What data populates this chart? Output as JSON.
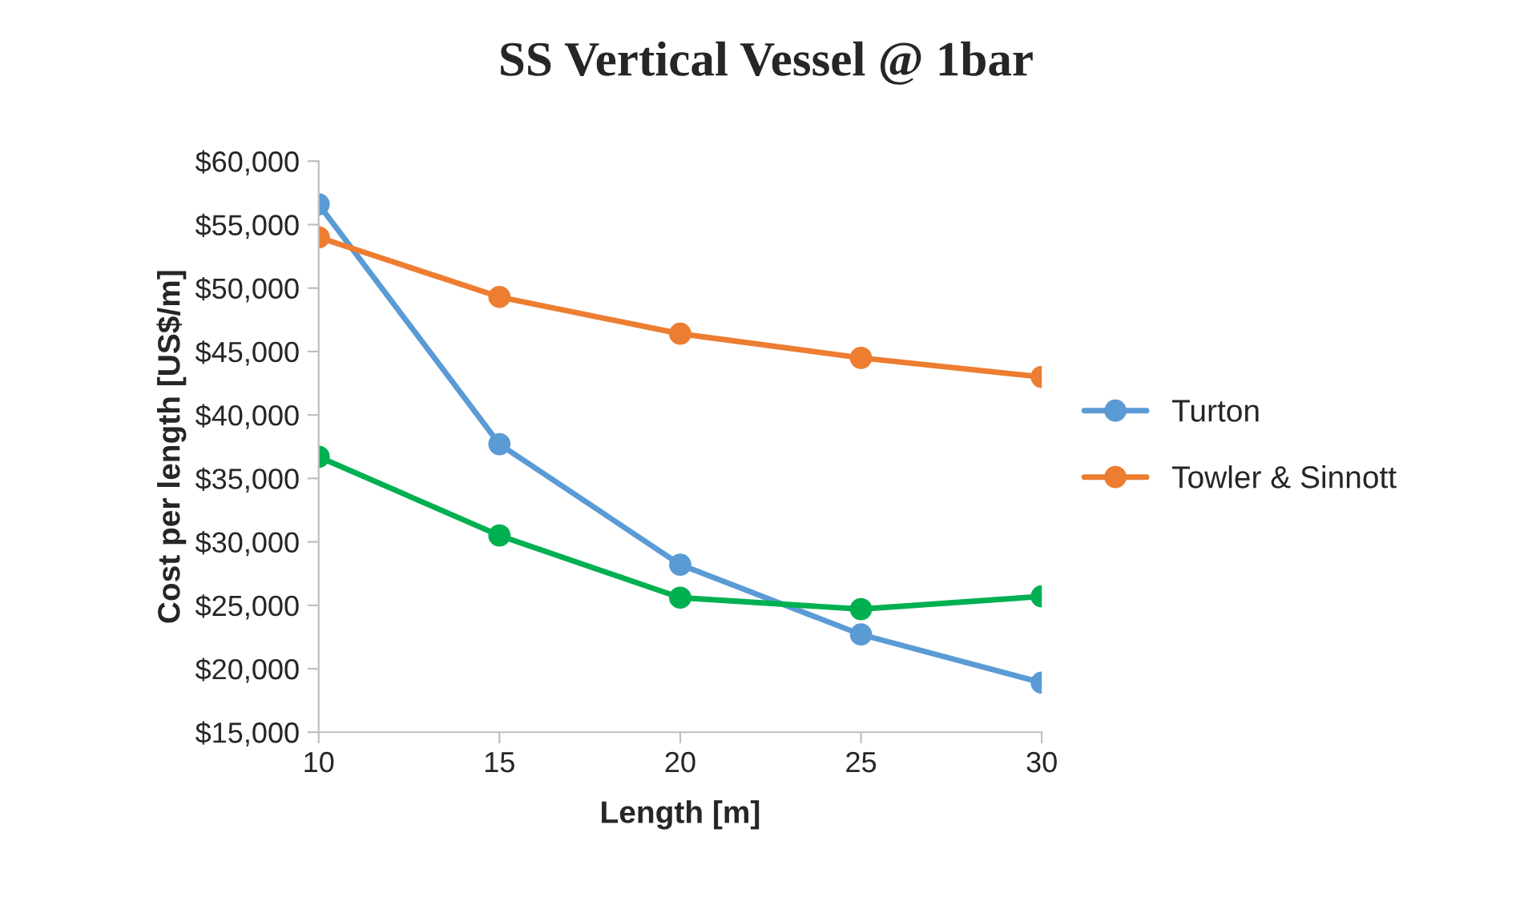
{
  "chart_data": {
    "type": "line",
    "title": "SS Vertical Vessel @ 1bar",
    "xlabel": "Length [m]",
    "ylabel": "Cost per length [US$/m]",
    "x": [
      10,
      15,
      20,
      25,
      30
    ],
    "series": [
      {
        "name": "Turton",
        "color": "#5b9bd5",
        "values": [
          56600,
          37700,
          28200,
          22700,
          18900
        ]
      },
      {
        "name": "Towler & Sinnott",
        "color": "#ed7d31",
        "values": [
          54000,
          49300,
          46400,
          44500,
          43000
        ]
      },
      {
        "color": "#00b050",
        "values": [
          36700,
          30500,
          25600,
          24700,
          25700
        ]
      }
    ],
    "xlim": [
      10,
      30
    ],
    "xticks": [
      10,
      15,
      20,
      25,
      30
    ],
    "ylim": [
      15000,
      60000
    ],
    "yticks": [
      {
        "value": 15000,
        "label": "$15,000"
      },
      {
        "value": 20000,
        "label": "$20,000"
      },
      {
        "value": 25000,
        "label": "$25,000"
      },
      {
        "value": 30000,
        "label": "$30,000"
      },
      {
        "value": 35000,
        "label": "$35,000"
      },
      {
        "value": 40000,
        "label": "$40,000"
      },
      {
        "value": 45000,
        "label": "$45,000"
      },
      {
        "value": 50000,
        "label": "$50,000"
      },
      {
        "value": 55000,
        "label": "$55,000"
      },
      {
        "value": 60000,
        "label": "$60,000"
      }
    ],
    "grid": false,
    "legend": "right",
    "marker": "circle",
    "line_style": "solid"
  }
}
